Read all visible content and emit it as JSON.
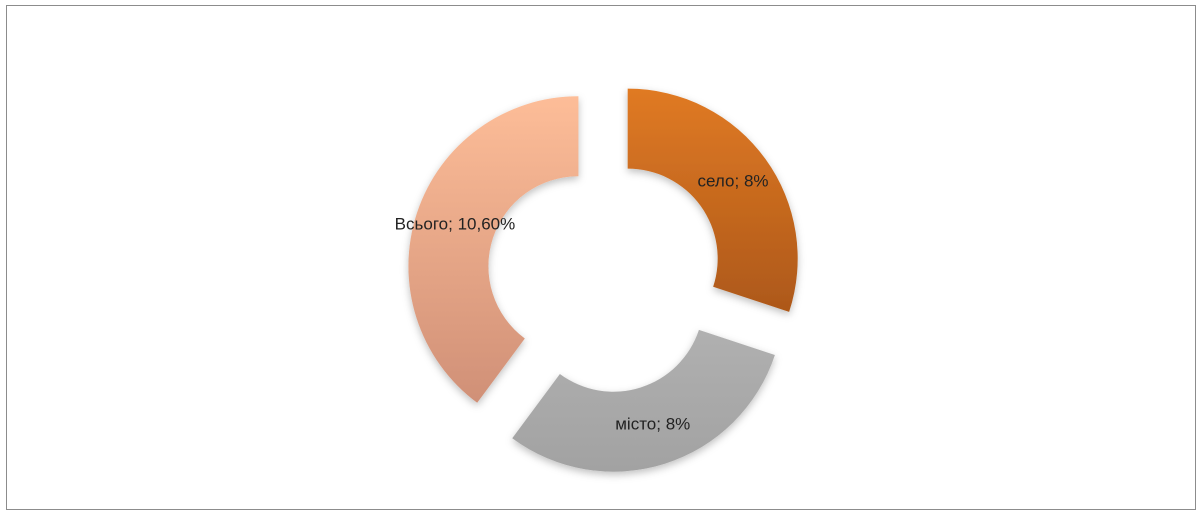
{
  "chart_data": {
    "type": "doughnut",
    "categories": [
      "село",
      "місто",
      "Всього"
    ],
    "values": [
      8,
      8,
      10.6
    ],
    "value_labels": [
      "8%",
      "8%",
      "10,60%"
    ],
    "label_separator": "; ",
    "colors": [
      "#d8701f",
      "#a6a6a6",
      "#f5b08c"
    ],
    "exploded": true
  }
}
